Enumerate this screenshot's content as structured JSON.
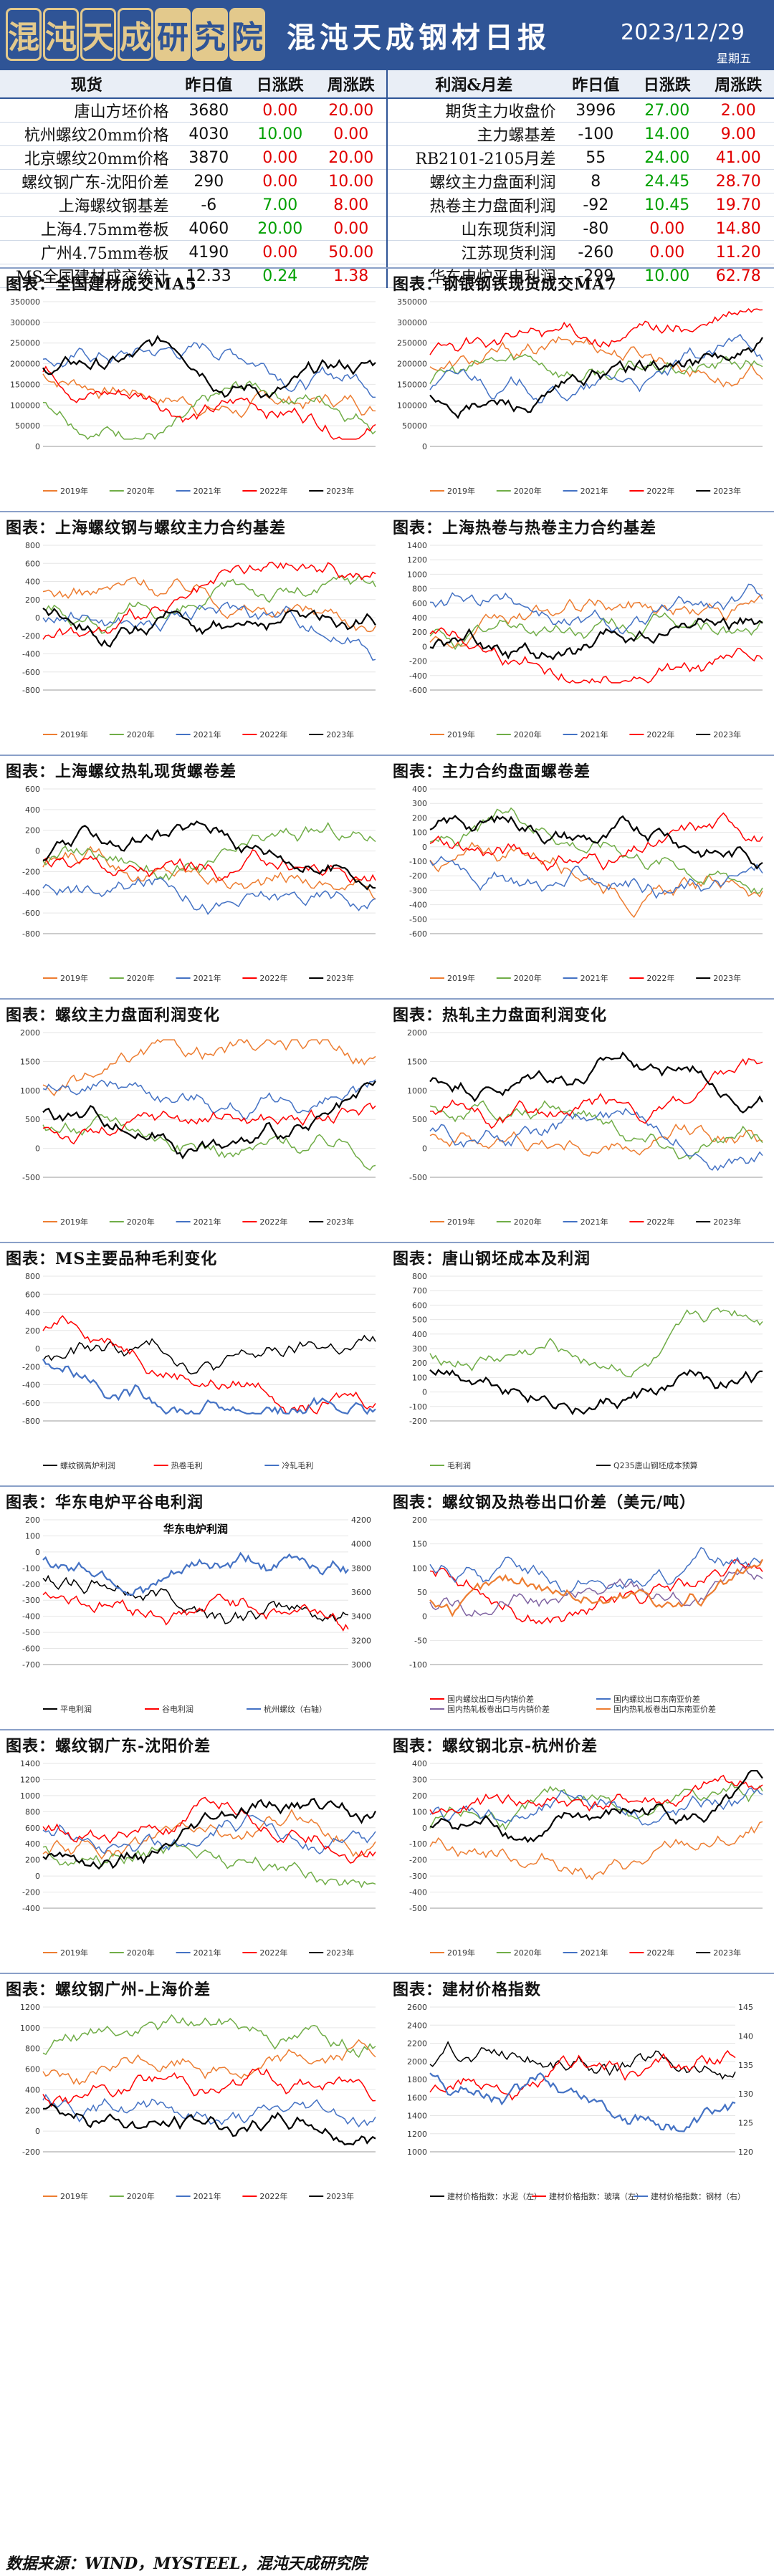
{
  "header": {
    "logo_chars": [
      "混",
      "沌",
      "天",
      "成",
      "研",
      "究",
      "院"
    ],
    "title": "混沌天成钢材日报",
    "date": "2023/12/29",
    "weekday": "星期五"
  },
  "table": {
    "left_headers": [
      "现货",
      "昨日值",
      "日涨跌",
      "周涨跌"
    ],
    "right_headers": [
      "利润&月差",
      "昨日值",
      "日涨跌",
      "周涨跌"
    ],
    "rows": [
      {
        "l": [
          "唐山方坯价格",
          "3680",
          "0.00",
          "20.00"
        ],
        "r": [
          "期货主力收盘价",
          "3996",
          "27.00",
          "2.00"
        ]
      },
      {
        "l": [
          "杭州螺纹20mm价格",
          "4030",
          "10.00",
          "0.00"
        ],
        "r": [
          "主力螺基差",
          "-100",
          "14.00",
          "9.00"
        ]
      },
      {
        "l": [
          "北京螺纹20mm价格",
          "3870",
          "0.00",
          "20.00"
        ],
        "r": [
          "RB2101-2105月差",
          "55",
          "24.00",
          "41.00"
        ]
      },
      {
        "l": [
          "螺纹钢广东-沈阳价差",
          "290",
          "0.00",
          "10.00"
        ],
        "r": [
          "螺纹主力盘面利润",
          "8",
          "24.45",
          "28.70"
        ]
      },
      {
        "l": [
          "上海螺纹钢基差",
          "-6",
          "7.00",
          "8.00"
        ],
        "r": [
          "热卷主力盘面利润",
          "-92",
          "10.45",
          "19.70"
        ]
      },
      {
        "l": [
          "上海4.75mm卷板",
          "4060",
          "20.00",
          "0.00"
        ],
        "r": [
          "山东现货利润",
          "-80",
          "0.00",
          "14.80"
        ]
      },
      {
        "l": [
          "广州4.75mm卷板",
          "4190",
          "0.00",
          "50.00"
        ],
        "r": [
          "江苏现货利润",
          "-260",
          "0.00",
          "11.20"
        ]
      },
      {
        "l": [
          "MS全国建材成交统计",
          "12.33",
          "0.24",
          "1.38"
        ],
        "r": [
          "华东电炉平电利润",
          "-299",
          "10.00",
          "62.78"
        ]
      }
    ]
  },
  "charts": [
    {
      "title": "图表：全国建材成交MA5",
      "legend": [
        "2019年",
        "2020年",
        "2021年",
        "2022年",
        "2023年"
      ],
      "yticks": [
        "0",
        "50000",
        "100000",
        "150000",
        "200000",
        "250000",
        "300000",
        "350000"
      ]
    },
    {
      "title": "图表：钢银钢铁现货成交MA7",
      "legend": [
        "2019年",
        "2020年",
        "2021年",
        "2022年",
        "2023年"
      ],
      "yticks": [
        "0",
        "50000",
        "100000",
        "150000",
        "200000",
        "250000",
        "300000",
        "350000"
      ]
    },
    {
      "title": "图表：上海螺纹钢与螺纹主力合约基差",
      "legend": [
        "2019年",
        "2020年",
        "2021年",
        "2022年",
        "2023年"
      ],
      "yticks": [
        "-800",
        "-600",
        "-400",
        "-200",
        "0",
        "200",
        "400",
        "600",
        "800"
      ]
    },
    {
      "title": "图表：上海热卷与热卷主力合约基差",
      "legend": [
        "2019年",
        "2020年",
        "2021年",
        "2022年",
        "2023年"
      ],
      "yticks": [
        "-600",
        "-400",
        "-200",
        "0",
        "200",
        "400",
        "600",
        "800",
        "1000",
        "1200",
        "1400"
      ]
    },
    {
      "title": "图表：上海螺纹热轧现货螺卷差",
      "legend": [
        "2019年",
        "2020年",
        "2021年",
        "2022年",
        "2023年"
      ],
      "yticks": [
        "-800",
        "-600",
        "-400",
        "-200",
        "0",
        "200",
        "400",
        "600"
      ]
    },
    {
      "title": "图表：主力合约盘面螺卷差",
      "legend": [
        "2019年",
        "2020年",
        "2021年",
        "2022年",
        "2023年"
      ],
      "yticks": [
        "-600",
        "-500",
        "-400",
        "-300",
        "-200",
        "-100",
        "0",
        "100",
        "200",
        "300",
        "400"
      ]
    },
    {
      "title": "图表：螺纹主力盘面利润变化",
      "legend": [
        "2019年",
        "2020年",
        "2021年",
        "2022年",
        "2023年"
      ],
      "yticks": [
        "-500",
        "0",
        "500",
        "1000",
        "1500",
        "2000"
      ]
    },
    {
      "title": "图表：热轧主力盘面利润变化",
      "legend": [
        "2019年",
        "2020年",
        "2021年",
        "2022年",
        "2023年"
      ],
      "yticks": [
        "-500",
        "0",
        "500",
        "1000",
        "1500",
        "2000"
      ]
    },
    {
      "title": "图表：MS主要品种毛利变化",
      "legend": [
        "螺纹钢高炉利润",
        "热卷毛利",
        "冷轧毛利"
      ],
      "yticks": [
        "-800",
        "-600",
        "-400",
        "-200",
        "0",
        "200",
        "400",
        "600",
        "800"
      ]
    },
    {
      "title": "图表：唐山钢坯成本及利润",
      "legend": [
        "毛利润",
        "Q235唐山钢坯成本预算"
      ],
      "yticks": [
        "-200",
        "-100",
        "0",
        "100",
        "200",
        "300",
        "400",
        "500",
        "600",
        "700",
        "800"
      ]
    },
    {
      "title": "图表：华东电炉平谷电利润",
      "legend": [
        "平电利润",
        "谷电利润",
        "杭州螺纹（右轴）"
      ],
      "inner_title": "华东电炉利润",
      "yticks": [
        "-700",
        "-600",
        "-500",
        "-400",
        "-300",
        "-200",
        "-100",
        "0",
        "100",
        "200"
      ],
      "y2ticks": [
        "3000",
        "3200",
        "3400",
        "3600",
        "3800",
        "4000",
        "4200"
      ]
    },
    {
      "title": "图表：螺纹钢及热卷出口价差（美元/吨）",
      "legend": [
        "国内螺纹出口与内销价差",
        "国内螺纹出口东南亚价差",
        "国内热轧板卷出口与内销价差",
        "国内热轧板卷出口东南亚价差"
      ],
      "yticks": [
        "-100",
        "-50",
        "0",
        "50",
        "100",
        "150",
        "200"
      ]
    },
    {
      "title": "图表：螺纹钢广东-沈阳价差",
      "legend": [
        "2019年",
        "2020年",
        "2021年",
        "2022年",
        "2023年"
      ],
      "yticks": [
        "-400",
        "-200",
        "0",
        "200",
        "400",
        "600",
        "800",
        "1000",
        "1200",
        "1400"
      ]
    },
    {
      "title": "图表：螺纹钢北京-杭州价差",
      "legend": [
        "2019年",
        "2020年",
        "2021年",
        "2022年",
        "2023年"
      ],
      "yticks": [
        "-500",
        "-400",
        "-300",
        "-200",
        "-100",
        "0",
        "100",
        "200",
        "300",
        "400"
      ]
    },
    {
      "title": "图表：螺纹钢广州-上海价差",
      "legend": [
        "2019年",
        "2020年",
        "2021年",
        "2022年",
        "2023年"
      ],
      "yticks": [
        "-200",
        "0",
        "200",
        "400",
        "600",
        "800",
        "1000",
        "1200"
      ]
    },
    {
      "title": "图表：建材价格指数",
      "legend": [
        "建材价格指数：水泥（左）",
        "建材价格指数：玻璃（左）",
        "建材价格指数：钢材（右）"
      ],
      "yticks": [
        "1000",
        "1200",
        "1400",
        "1600",
        "1800",
        "2000",
        "2200",
        "2400",
        "2600"
      ],
      "y2ticks": [
        "120",
        "125",
        "130",
        "135",
        "140",
        "145"
      ]
    }
  ],
  "colors": {
    "header_bg": "#2f5496",
    "y2019": "#ed7d31",
    "y2020": "#70ad47",
    "y2021": "#4472c4",
    "y2022": "#ff0000",
    "y2023": "#000000"
  },
  "footer": "数据来源：WIND，MYSTEEL，混沌天成研究院"
}
